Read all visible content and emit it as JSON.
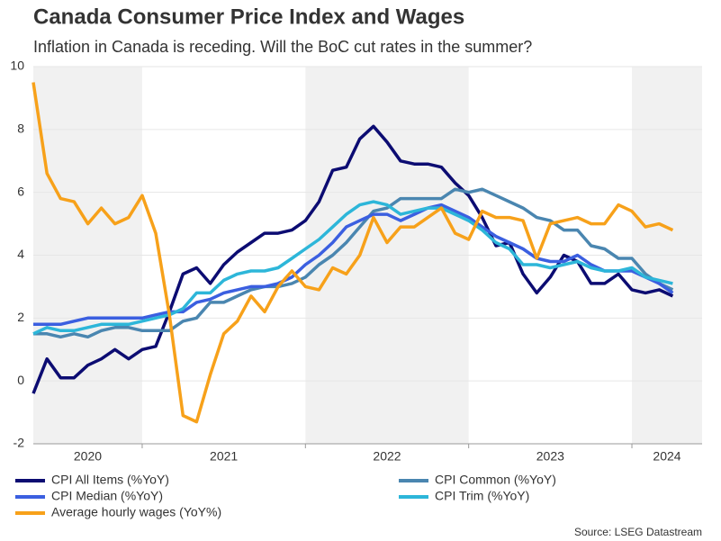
{
  "chart_data": {
    "type": "line",
    "title": "Canada Consumer Price Index and Wages",
    "subtitle": "Inflation in Canada is receding. Will the BoC cut rates in the summer?",
    "source": "Source: LSEG Datastream",
    "x": [
      2020.333,
      2020.417,
      2020.5,
      2020.583,
      2020.667,
      2020.75,
      2020.833,
      2020.917,
      2021,
      2021.083,
      2021.167,
      2021.25,
      2021.333,
      2021.417,
      2021.5,
      2021.583,
      2021.667,
      2021.75,
      2021.833,
      2021.917,
      2022,
      2022.083,
      2022.167,
      2022.25,
      2022.333,
      2022.417,
      2022.5,
      2022.583,
      2022.667,
      2022.75,
      2022.833,
      2022.917,
      2023,
      2023.083,
      2023.167,
      2023.25,
      2023.333,
      2023.417,
      2023.5,
      2023.583,
      2023.667,
      2023.75,
      2023.833,
      2023.917,
      2024,
      2024.083,
      2024.167,
      2024.25
    ],
    "xlim": [
      2020.333,
      2024.43
    ],
    "xticks": [
      2020,
      2021,
      2022,
      2023,
      2024
    ],
    "ylim": [
      -2,
      10
    ],
    "yticks": [
      -2,
      0,
      2,
      4,
      6,
      8,
      10
    ],
    "grid": true,
    "series": [
      {
        "name": "CPI All Items (%YoY)",
        "color": "#0c0c72",
        "values": [
          -0.4,
          0.7,
          0.1,
          0.1,
          0.5,
          0.7,
          1.0,
          0.7,
          1.0,
          1.1,
          2.2,
          3.4,
          3.6,
          3.1,
          3.7,
          4.1,
          4.4,
          4.7,
          4.7,
          4.8,
          5.1,
          5.7,
          6.7,
          6.8,
          7.7,
          8.1,
          7.6,
          7.0,
          6.9,
          6.9,
          6.8,
          6.3,
          5.9,
          5.2,
          4.3,
          4.4,
          3.4,
          2.8,
          3.3,
          4.0,
          3.8,
          3.1,
          3.1,
          3.4,
          2.9,
          2.8,
          2.9,
          2.7
        ]
      },
      {
        "name": "CPI Common (%YoY)",
        "color": "#4a86b0",
        "values": [
          1.5,
          1.5,
          1.4,
          1.5,
          1.4,
          1.6,
          1.7,
          1.7,
          1.6,
          1.6,
          1.6,
          1.9,
          2.0,
          2.5,
          2.5,
          2.7,
          2.9,
          3.0,
          3.0,
          3.1,
          3.3,
          3.7,
          4.0,
          4.4,
          4.9,
          5.4,
          5.5,
          5.8,
          5.8,
          5.8,
          5.8,
          6.1,
          6.0,
          6.1,
          5.9,
          5.7,
          5.5,
          5.2,
          5.1,
          4.8,
          4.8,
          4.3,
          4.2,
          3.9,
          3.9,
          3.4,
          3.1,
          2.9
        ]
      },
      {
        "name": "CPI Median (%YoY)",
        "color": "#3b5fe0",
        "values": [
          1.8,
          1.8,
          1.8,
          1.9,
          2.0,
          2.0,
          2.0,
          2.0,
          2.0,
          2.1,
          2.2,
          2.2,
          2.5,
          2.6,
          2.8,
          2.9,
          3.0,
          3.0,
          3.1,
          3.3,
          3.7,
          4.0,
          4.4,
          4.9,
          5.1,
          5.3,
          5.3,
          5.1,
          5.3,
          5.5,
          5.6,
          5.4,
          5.2,
          4.9,
          4.6,
          4.4,
          4.2,
          3.9,
          3.8,
          3.8,
          4.0,
          3.7,
          3.5,
          3.5,
          3.5,
          3.3,
          3.1,
          2.8
        ]
      },
      {
        "name": "CPI Trim (%YoY)",
        "color": "#2db6d9",
        "values": [
          1.5,
          1.7,
          1.6,
          1.6,
          1.7,
          1.8,
          1.8,
          1.8,
          1.9,
          2.0,
          2.1,
          2.3,
          2.8,
          2.8,
          3.2,
          3.4,
          3.5,
          3.5,
          3.6,
          3.9,
          4.2,
          4.5,
          4.9,
          5.3,
          5.6,
          5.7,
          5.6,
          5.3,
          5.4,
          5.5,
          5.5,
          5.3,
          5.1,
          4.8,
          4.4,
          4.2,
          3.7,
          3.7,
          3.6,
          3.7,
          3.8,
          3.6,
          3.5,
          3.5,
          3.6,
          3.3,
          3.2,
          3.1
        ]
      },
      {
        "name": "Average hourly wages (YoY%)",
        "color": "#f7a11a",
        "values": [
          9.5,
          6.6,
          5.8,
          5.7,
          5.0,
          5.5,
          5.0,
          5.2,
          5.9,
          4.7,
          2.1,
          -1.1,
          -1.3,
          0.2,
          1.5,
          1.9,
          2.7,
          2.2,
          3.0,
          3.5,
          3.0,
          2.9,
          3.6,
          3.4,
          4.0,
          5.2,
          4.4,
          4.9,
          4.9,
          5.2,
          5.5,
          4.7,
          4.5,
          5.4,
          5.2,
          5.2,
          5.1,
          3.9,
          5.0,
          5.1,
          5.2,
          5.0,
          5.0,
          5.6,
          5.4,
          4.9,
          5.0,
          4.8
        ]
      }
    ]
  }
}
